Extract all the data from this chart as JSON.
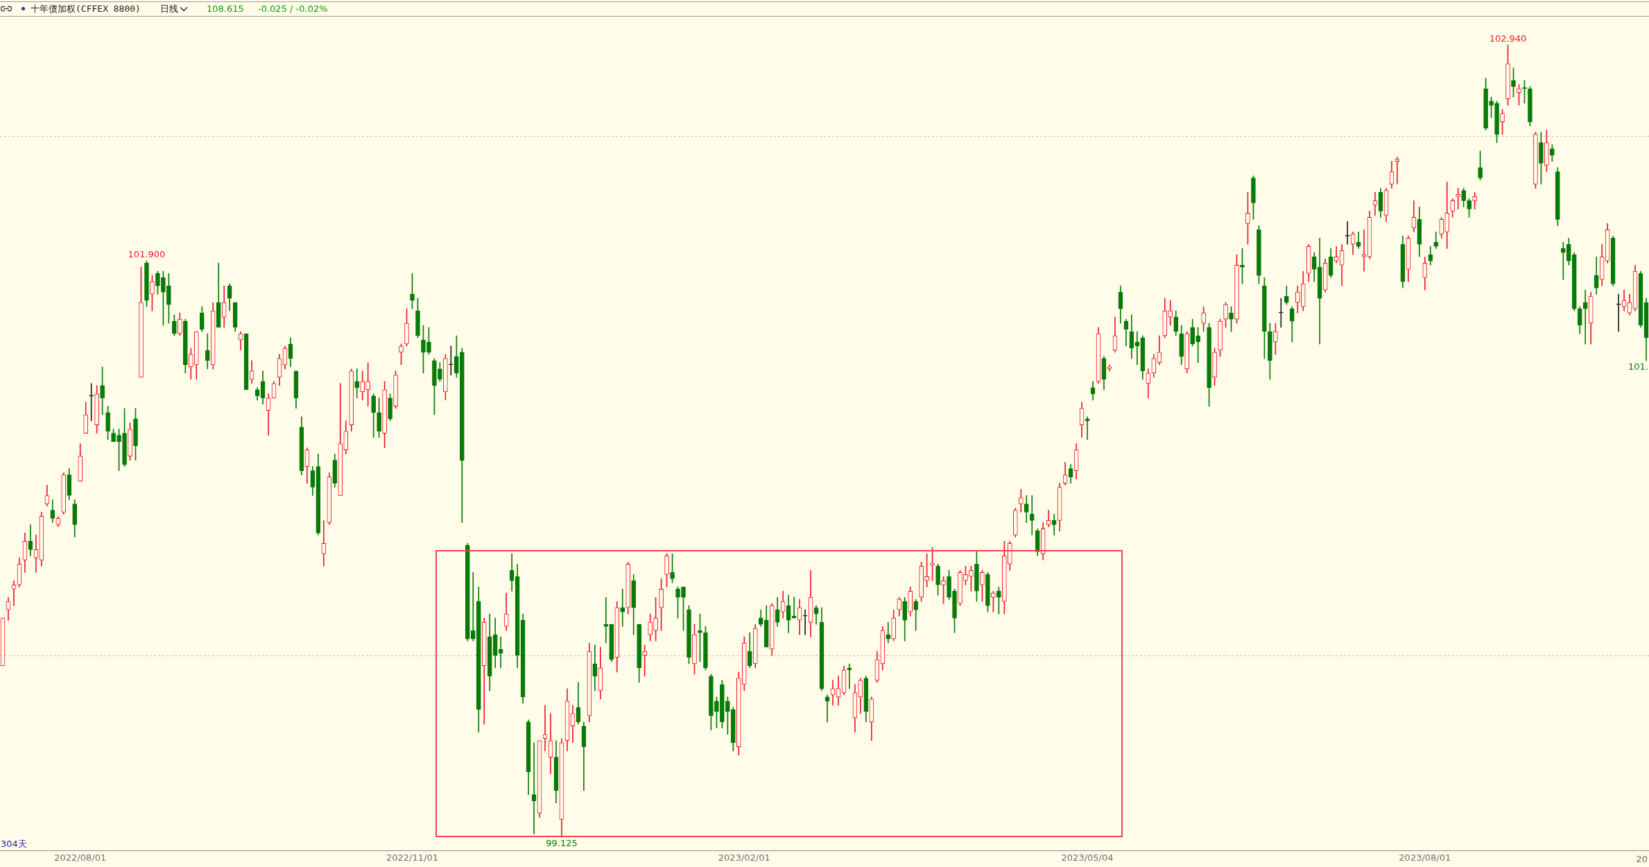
{
  "chart_data": {
    "type": "candlestick",
    "title": "十年债加权(CFFEX 8800)",
    "categories": [
      null,
      null,
      null,
      null,
      null,
      null,
      null,
      null,
      null,
      null,
      null,
      null,
      null,
      null,
      "2022/08/01",
      null,
      null,
      null,
      null,
      null,
      null,
      null,
      null,
      null,
      null,
      null,
      null,
      null,
      null,
      null,
      null,
      null,
      null,
      null,
      null,
      null,
      null,
      null,
      null,
      null,
      null,
      null,
      null,
      null,
      null,
      null,
      null,
      null,
      null,
      null,
      null,
      null,
      null,
      null,
      null,
      null,
      null,
      null,
      null,
      null,
      null,
      null,
      null,
      null,
      null,
      null,
      null,
      null,
      null,
      null,
      null,
      null,
      null,
      null,
      "2022/11/01",
      null,
      null,
      null,
      null,
      null,
      null,
      null,
      null,
      null,
      null,
      null,
      null,
      null,
      null,
      null,
      null,
      null,
      null,
      null,
      null,
      null,
      null,
      null,
      null,
      null,
      null,
      null,
      null,
      null,
      null,
      null,
      null,
      null,
      null,
      null,
      null,
      null,
      null,
      null,
      null,
      null,
      null,
      null,
      null,
      null,
      null,
      null,
      null,
      null,
      null,
      null,
      null,
      null,
      null,
      null,
      null,
      null,
      null,
      null,
      "2023/02/01",
      null,
      null,
      null,
      null,
      null,
      null,
      null,
      null,
      null,
      null,
      null,
      null,
      null,
      null,
      null,
      null,
      null,
      null,
      null,
      null,
      null,
      null,
      null,
      null,
      null,
      null,
      null,
      null,
      null,
      null,
      null,
      null,
      null,
      null,
      null,
      null,
      null,
      null,
      null,
      null,
      null,
      null,
      null,
      null,
      null,
      null,
      null,
      null,
      null,
      null,
      null,
      null,
      null,
      null,
      null,
      null,
      null,
      null,
      null,
      null,
      null,
      "2023/05/04",
      null,
      null,
      null,
      null,
      null,
      null,
      null,
      null,
      null,
      null,
      null,
      null,
      null,
      null,
      null,
      null,
      null,
      null,
      null,
      null,
      null,
      null,
      null,
      null,
      null,
      null,
      null,
      null,
      null,
      null,
      null,
      null,
      null,
      null,
      null,
      null,
      null,
      null,
      null,
      null,
      null,
      null,
      null,
      null,
      null,
      null,
      null,
      null,
      null,
      null,
      null,
      null,
      null,
      null,
      null,
      null,
      null,
      null,
      null,
      null,
      "2023/08/01",
      null,
      null,
      null,
      null,
      null,
      null,
      null,
      null,
      null,
      null,
      null,
      null,
      null,
      null,
      null,
      null,
      null,
      null,
      null,
      null,
      null,
      null,
      null,
      null,
      null,
      null,
      null,
      null,
      null,
      null,
      null,
      null,
      null,
      null,
      null,
      null,
      null,
      null,
      null,
      null
    ],
    "ohlc": [
      [
        99.95,
        100.18,
        99.95,
        100.18
      ],
      [
        100.22,
        100.28,
        100.17,
        100.26
      ],
      [
        100.32,
        100.36,
        100.24,
        100.34
      ],
      [
        100.34,
        100.47,
        100.33,
        100.44
      ],
      [
        100.46,
        100.59,
        100.4,
        100.55
      ],
      [
        100.55,
        100.63,
        100.48,
        100.51
      ],
      [
        100.47,
        100.58,
        100.4,
        100.51
      ],
      [
        100.46,
        100.69,
        100.43,
        100.67
      ],
      [
        100.73,
        100.82,
        100.72,
        100.77
      ],
      [
        100.7,
        100.75,
        100.64,
        100.66
      ],
      [
        100.63,
        100.67,
        100.62,
        100.66
      ],
      [
        100.69,
        100.88,
        100.68,
        100.87
      ],
      [
        100.87,
        100.9,
        100.75,
        100.77
      ],
      [
        100.73,
        100.75,
        100.57,
        100.63
      ],
      [
        100.84,
        101.02,
        100.84,
        100.96
      ],
      [
        101.07,
        101.22,
        101.07,
        101.16
      ],
      [
        101.25,
        101.31,
        101.13,
        101.25
      ],
      [
        101.11,
        101.3,
        101.07,
        101.26
      ],
      [
        101.3,
        101.39,
        101.16,
        101.24
      ],
      [
        101.17,
        101.2,
        101.04,
        101.08
      ],
      [
        101.07,
        101.09,
        101.03,
        101.03
      ],
      [
        101.06,
        101.09,
        100.89,
        101.03
      ],
      [
        101.07,
        101.19,
        100.91,
        100.92
      ],
      [
        100.96,
        101.12,
        100.94,
        101.09
      ],
      [
        101.14,
        101.19,
        100.94,
        101.01
      ],
      [
        101.34,
        101.87,
        101.34,
        101.7
      ],
      [
        101.89,
        101.9,
        101.68,
        101.71
      ],
      [
        101.74,
        101.83,
        101.66,
        101.8
      ],
      [
        101.84,
        101.85,
        101.74,
        101.78
      ],
      [
        101.82,
        101.85,
        101.59,
        101.75
      ],
      [
        101.78,
        101.84,
        101.6,
        101.69
      ],
      [
        101.61,
        101.64,
        101.54,
        101.55
      ],
      [
        101.55,
        101.65,
        101.54,
        101.62
      ],
      [
        101.61,
        101.62,
        101.36,
        101.4
      ],
      [
        101.39,
        101.48,
        101.33,
        101.45
      ],
      [
        101.4,
        101.56,
        101.33,
        101.56
      ],
      [
        101.65,
        101.68,
        101.56,
        101.57
      ],
      [
        101.47,
        101.55,
        101.38,
        101.42
      ],
      [
        101.4,
        101.7,
        101.38,
        101.66
      ],
      [
        101.7,
        101.89,
        101.58,
        101.58
      ],
      [
        101.63,
        101.78,
        101.58,
        101.7
      ],
      [
        101.78,
        101.79,
        101.66,
        101.72
      ],
      [
        101.7,
        101.7,
        101.56,
        101.58
      ],
      [
        101.52,
        101.56,
        101.47,
        101.55
      ],
      [
        101.55,
        101.55,
        101.28,
        101.28
      ],
      [
        101.33,
        101.42,
        101.31,
        101.37
      ],
      [
        101.28,
        101.29,
        101.23,
        101.25
      ],
      [
        101.32,
        101.37,
        101.21,
        101.24
      ],
      [
        101.18,
        101.26,
        101.06,
        101.24
      ],
      [
        101.24,
        101.32,
        101.24,
        101.31
      ],
      [
        101.34,
        101.45,
        101.3,
        101.43
      ],
      [
        101.4,
        101.49,
        101.38,
        101.48
      ],
      [
        101.5,
        101.53,
        101.39,
        101.43
      ],
      [
        101.37,
        101.37,
        101.19,
        101.24
      ],
      [
        101.1,
        101.15,
        100.87,
        100.89
      ],
      [
        100.91,
        101.0,
        100.83,
        100.99
      ],
      [
        100.89,
        100.91,
        100.77,
        100.81
      ],
      [
        100.91,
        100.97,
        100.58,
        100.59
      ],
      [
        100.49,
        100.65,
        100.43,
        100.54
      ],
      [
        100.64,
        100.88,
        100.63,
        100.86
      ],
      [
        100.94,
        100.97,
        100.81,
        100.83
      ],
      [
        100.77,
        101.31,
        100.77,
        101.02
      ],
      [
        100.99,
        101.13,
        100.97,
        101.08
      ],
      [
        101.11,
        101.38,
        101.08,
        101.37
      ],
      [
        101.32,
        101.38,
        101.24,
        101.29
      ],
      [
        101.27,
        101.37,
        101.23,
        101.32
      ],
      [
        101.28,
        101.41,
        101.2,
        101.32
      ],
      [
        101.25,
        101.26,
        101.05,
        101.17
      ],
      [
        101.17,
        101.24,
        101.05,
        101.08
      ],
      [
        101.07,
        101.32,
        101.0,
        101.28
      ],
      [
        101.24,
        101.26,
        101.13,
        101.14
      ],
      [
        101.2,
        101.37,
        101.19,
        101.35
      ],
      [
        101.46,
        101.5,
        101.4,
        101.49
      ],
      [
        101.5,
        101.67,
        101.49,
        101.6
      ],
      [
        101.74,
        101.84,
        101.67,
        101.71
      ],
      [
        101.66,
        101.72,
        101.53,
        101.54
      ],
      [
        101.52,
        101.59,
        101.36,
        101.46
      ],
      [
        101.51,
        101.58,
        101.45,
        101.46
      ],
      [
        101.42,
        101.43,
        101.16,
        101.3
      ],
      [
        101.38,
        101.41,
        101.32,
        101.33
      ],
      [
        101.27,
        101.45,
        101.23,
        101.43
      ],
      [
        101.4,
        101.49,
        101.35,
        101.4
      ],
      [
        101.44,
        101.54,
        101.34,
        101.36
      ],
      [
        101.46,
        101.48,
        100.64,
        100.94
      ],
      [
        100.53,
        100.54,
        100.07,
        100.08
      ],
      [
        100.12,
        100.4,
        100.07,
        100.08
      ],
      [
        100.26,
        100.33,
        99.63,
        99.74
      ],
      [
        99.95,
        100.18,
        99.67,
        100.16
      ],
      [
        100.09,
        100.2,
        99.83,
        99.9
      ],
      [
        100.1,
        100.18,
        99.94,
        100.0
      ],
      [
        100.03,
        100.09,
        99.94,
        100.01
      ],
      [
        100.14,
        100.3,
        100.12,
        100.2
      ],
      [
        100.41,
        100.49,
        100.31,
        100.36
      ],
      [
        100.38,
        100.44,
        99.94,
        100.0
      ],
      [
        100.17,
        100.2,
        99.77,
        99.8
      ],
      [
        99.68,
        99.69,
        99.33,
        99.44
      ],
      [
        99.33,
        99.58,
        99.14,
        99.3
      ],
      [
        99.24,
        99.59,
        99.22,
        99.59
      ],
      [
        99.6,
        99.76,
        99.54,
        99.62
      ],
      [
        99.51,
        99.72,
        99.43,
        99.59
      ],
      [
        99.51,
        99.59,
        99.29,
        99.35
      ],
      [
        99.21,
        99.6,
        99.125,
        99.58
      ],
      [
        99.59,
        99.84,
        99.54,
        99.78
      ],
      [
        99.66,
        99.76,
        99.58,
        99.72
      ],
      [
        99.75,
        99.87,
        99.67,
        99.68
      ],
      [
        99.66,
        99.68,
        99.35,
        99.56
      ],
      [
        99.71,
        100.06,
        99.68,
        100.02
      ],
      [
        99.96,
        100.05,
        99.83,
        99.9
      ],
      [
        99.83,
        100.04,
        99.79,
        99.94
      ],
      [
        100.15,
        100.28,
        100.06,
        100.14
      ],
      [
        100.15,
        100.15,
        99.97,
        99.98
      ],
      [
        99.99,
        100.26,
        99.92,
        100.23
      ],
      [
        100.23,
        100.32,
        100.14,
        100.21
      ],
      [
        100.23,
        100.45,
        100.2,
        100.44
      ],
      [
        100.36,
        100.39,
        100.1,
        100.23
      ],
      [
        100.15,
        100.15,
        99.87,
        99.94
      ],
      [
        100.0,
        100.05,
        99.9,
        100.02
      ],
      [
        100.1,
        100.2,
        100.07,
        100.16
      ],
      [
        100.12,
        100.28,
        100.07,
        100.18
      ],
      [
        100.23,
        100.37,
        100.12,
        100.32
      ],
      [
        100.39,
        100.49,
        100.33,
        100.48
      ],
      [
        100.4,
        100.49,
        100.35,
        100.37
      ],
      [
        100.32,
        100.33,
        100.18,
        100.28
      ],
      [
        100.33,
        100.33,
        100.12,
        100.28
      ],
      [
        100.22,
        100.24,
        99.96,
        99.99
      ],
      [
        99.96,
        100.15,
        99.91,
        100.1
      ],
      [
        100.12,
        100.2,
        99.97,
        100.11
      ],
      [
        100.11,
        100.14,
        99.93,
        99.94
      ],
      [
        99.9,
        99.91,
        99.64,
        99.71
      ],
      [
        99.78,
        99.8,
        99.65,
        99.73
      ],
      [
        99.86,
        99.88,
        99.65,
        99.68
      ],
      [
        99.78,
        99.8,
        99.62,
        99.73
      ],
      [
        99.74,
        99.75,
        99.54,
        99.58
      ],
      [
        99.56,
        99.92,
        99.52,
        99.89
      ],
      [
        99.86,
        100.09,
        99.83,
        100.06
      ],
      [
        100.02,
        100.11,
        99.94,
        99.95
      ],
      [
        99.96,
        100.15,
        99.94,
        100.13
      ],
      [
        100.18,
        100.22,
        100.14,
        100.15
      ],
      [
        100.17,
        100.24,
        100.04,
        100.04
      ],
      [
        100.03,
        100.25,
        100.0,
        100.24
      ],
      [
        100.22,
        100.28,
        100.14,
        100.16
      ],
      [
        100.21,
        100.31,
        100.18,
        100.26
      ],
      [
        100.24,
        100.29,
        100.11,
        100.17
      ],
      [
        100.19,
        100.28,
        100.18,
        100.18
      ],
      [
        100.17,
        100.27,
        100.1,
        100.23
      ],
      [
        100.19,
        100.22,
        100.1,
        100.19
      ],
      [
        100.16,
        100.41,
        100.09,
        100.28
      ],
      [
        100.23,
        100.24,
        100.15,
        100.2
      ],
      [
        100.16,
        100.23,
        99.83,
        99.84
      ],
      [
        99.8,
        99.81,
        99.68,
        99.78
      ],
      [
        99.81,
        99.88,
        99.76,
        99.84
      ],
      [
        99.8,
        99.9,
        99.76,
        99.84
      ],
      [
        99.82,
        99.95,
        99.81,
        99.93
      ],
      [
        99.94,
        99.96,
        99.84,
        99.93
      ],
      [
        99.7,
        99.86,
        99.63,
        99.82
      ],
      [
        99.8,
        99.89,
        99.72,
        99.88
      ],
      [
        99.89,
        99.9,
        99.68,
        99.73
      ],
      [
        99.68,
        99.8,
        99.59,
        99.79
      ],
      [
        99.88,
        100.02,
        99.87,
        99.98
      ],
      [
        99.96,
        100.14,
        99.93,
        100.12
      ],
      [
        100.1,
        100.16,
        100.06,
        100.08
      ],
      [
        100.08,
        100.22,
        100.07,
        100.18
      ],
      [
        100.22,
        100.28,
        100.19,
        100.27
      ],
      [
        100.26,
        100.28,
        100.07,
        100.17
      ],
      [
        100.21,
        100.33,
        100.19,
        100.31
      ],
      [
        100.26,
        100.27,
        100.12,
        100.22
      ],
      [
        100.28,
        100.45,
        100.26,
        100.43
      ],
      [
        100.36,
        100.49,
        100.33,
        100.38
      ],
      [
        100.435,
        100.52,
        100.36,
        100.445
      ],
      [
        100.43,
        100.44,
        100.29,
        100.34
      ],
      [
        100.34,
        100.38,
        100.25,
        100.36
      ],
      [
        100.38,
        100.41,
        100.27,
        100.28
      ],
      [
        100.31,
        100.32,
        100.11,
        100.18
      ],
      [
        100.25,
        100.41,
        100.24,
        100.4
      ],
      [
        100.36,
        100.43,
        100.34,
        100.39
      ],
      [
        100.38,
        100.43,
        100.31,
        100.41
      ],
      [
        100.44,
        100.5,
        100.26,
        100.31
      ],
      [
        100.34,
        100.41,
        100.26,
        100.4
      ],
      [
        100.39,
        100.4,
        100.21,
        100.24
      ],
      [
        100.28,
        100.31,
        100.21,
        100.3
      ],
      [
        100.31,
        100.33,
        100.2,
        100.28
      ],
      [
        100.26,
        100.55,
        100.2,
        100.48
      ],
      [
        100.44,
        100.55,
        100.41,
        100.54
      ],
      [
        100.58,
        100.71,
        100.57,
        100.7
      ],
      [
        100.73,
        100.8,
        100.69,
        100.76
      ],
      [
        100.73,
        100.77,
        100.64,
        100.69
      ],
      [
        100.68,
        100.77,
        100.58,
        100.65
      ],
      [
        100.6,
        100.61,
        100.48,
        100.5
      ],
      [
        100.49,
        100.64,
        100.46,
        100.61
      ],
      [
        100.63,
        100.7,
        100.62,
        100.65
      ],
      [
        100.65,
        100.68,
        100.58,
        100.63
      ],
      [
        100.65,
        100.83,
        100.6,
        100.81
      ],
      [
        100.83,
        100.93,
        100.82,
        100.87
      ],
      [
        100.9,
        100.92,
        100.83,
        100.86
      ],
      [
        100.89,
        101.02,
        100.85,
        100.99
      ],
      [
        101.11,
        101.22,
        101.05,
        101.19
      ],
      [
        101.14,
        101.15,
        101.04,
        101.13
      ],
      [
        101.29,
        101.32,
        101.23,
        101.26
      ],
      [
        101.32,
        101.58,
        101.31,
        101.55
      ],
      [
        101.43,
        101.44,
        101.28,
        101.33
      ],
      [
        101.38,
        101.4,
        101.37,
        101.39
      ],
      [
        101.47,
        101.63,
        101.46,
        101.54
      ],
      [
        101.75,
        101.78,
        101.6,
        101.67
      ],
      [
        101.61,
        101.62,
        101.49,
        101.57
      ],
      [
        101.56,
        101.64,
        101.43,
        101.48
      ],
      [
        101.51,
        101.56,
        101.4,
        101.49
      ],
      [
        101.53,
        101.54,
        101.33,
        101.37
      ],
      [
        101.31,
        101.38,
        101.24,
        101.36
      ],
      [
        101.36,
        101.45,
        101.34,
        101.43
      ],
      [
        101.41,
        101.54,
        101.4,
        101.46
      ],
      [
        101.54,
        101.72,
        101.53,
        101.66
      ],
      [
        101.63,
        101.71,
        101.59,
        101.66
      ],
      [
        101.63,
        101.66,
        101.54,
        101.56
      ],
      [
        101.55,
        101.59,
        101.4,
        101.44
      ],
      [
        101.38,
        101.56,
        101.36,
        101.55
      ],
      [
        101.58,
        101.62,
        101.49,
        101.5
      ],
      [
        101.54,
        101.58,
        101.41,
        101.51
      ],
      [
        101.6,
        101.68,
        101.56,
        101.65
      ],
      [
        101.58,
        101.6,
        101.2,
        101.29
      ],
      [
        101.34,
        101.48,
        101.3,
        101.46
      ],
      [
        101.47,
        101.62,
        101.44,
        101.61
      ],
      [
        101.62,
        101.7,
        101.58,
        101.69
      ],
      [
        101.65,
        101.68,
        101.56,
        101.62
      ],
      [
        101.62,
        101.93,
        101.6,
        101.88
      ],
      [
        101.88,
        101.96,
        101.79,
        101.87
      ],
      [
        102.08,
        102.23,
        101.98,
        102.13
      ],
      [
        102.3,
        102.31,
        102.1,
        102.18
      ],
      [
        102.05,
        102.07,
        101.79,
        101.83
      ],
      [
        101.78,
        101.82,
        101.43,
        101.56
      ],
      [
        101.56,
        101.6,
        101.33,
        101.42
      ],
      [
        101.51,
        101.6,
        101.45,
        101.56
      ],
      [
        101.65,
        101.72,
        101.58,
        101.65
      ],
      [
        101.73,
        101.78,
        101.69,
        101.7
      ],
      [
        101.67,
        101.68,
        101.51,
        101.61
      ],
      [
        101.7,
        101.78,
        101.65,
        101.75
      ],
      [
        101.68,
        101.85,
        101.66,
        101.79
      ],
      [
        101.84,
        101.98,
        101.8,
        101.97
      ],
      [
        101.92,
        101.94,
        101.8,
        101.86
      ],
      [
        101.87,
        102.01,
        101.5,
        101.72
      ],
      [
        101.76,
        101.91,
        101.75,
        101.89
      ],
      [
        101.92,
        101.96,
        101.82,
        101.83
      ],
      [
        101.9,
        101.97,
        101.89,
        101.92
      ],
      [
        101.88,
        101.98,
        101.78,
        101.95
      ],
      [
        102.02,
        102.09,
        101.98,
        102.02
      ],
      [
        101.98,
        102.04,
        101.93,
        102.03
      ],
      [
        101.99,
        102.04,
        101.96,
        101.97
      ],
      [
        101.92,
        102.05,
        101.85,
        101.93
      ],
      [
        101.92,
        102.14,
        101.91,
        102.11
      ],
      [
        102.17,
        102.23,
        102.12,
        102.19
      ],
      [
        102.23,
        102.25,
        102.11,
        102.14
      ],
      [
        102.12,
        102.25,
        102.09,
        102.24
      ],
      [
        102.27,
        102.38,
        102.25,
        102.33
      ],
      [
        102.38,
        102.4,
        102.27,
        102.39
      ],
      [
        101.98,
        102.02,
        101.77,
        101.8
      ],
      [
        101.86,
        102.02,
        101.8,
        102.01
      ],
      [
        102.06,
        102.19,
        102.04,
        102.11
      ],
      [
        102.1,
        102.16,
        101.92,
        101.98
      ],
      [
        101.82,
        101.92,
        101.76,
        101.89
      ],
      [
        101.93,
        101.97,
        101.88,
        101.9
      ],
      [
        101.99,
        102.04,
        101.96,
        101.97
      ],
      [
        102.03,
        102.11,
        102.01,
        102.1
      ],
      [
        102.04,
        102.28,
        101.96,
        102.13
      ],
      [
        102.14,
        102.2,
        102.11,
        102.19
      ],
      [
        102.21,
        102.25,
        102.15,
        102.22
      ],
      [
        102.24,
        102.25,
        102.16,
        102.19
      ],
      [
        102.19,
        102.2,
        102.11,
        102.15
      ],
      [
        102.19,
        102.23,
        102.15,
        102.21
      ],
      [
        102.35,
        102.43,
        102.29,
        102.3
      ],
      [
        102.73,
        102.78,
        102.53,
        102.54
      ],
      [
        102.67,
        102.69,
        102.59,
        102.65
      ],
      [
        102.66,
        102.67,
        102.47,
        102.51
      ],
      [
        102.57,
        102.63,
        102.51,
        102.61
      ],
      [
        102.68,
        102.94,
        102.65,
        102.85
      ],
      [
        102.77,
        102.83,
        102.69,
        102.74
      ],
      [
        102.71,
        102.75,
        102.65,
        102.73
      ],
      [
        102.735,
        102.77,
        102.66,
        102.73
      ],
      [
        102.73,
        102.74,
        102.55,
        102.57
      ],
      [
        102.27,
        102.52,
        102.25,
        102.51
      ],
      [
        102.47,
        102.52,
        102.27,
        102.37
      ],
      [
        102.36,
        102.53,
        102.33,
        102.47
      ],
      [
        102.44,
        102.46,
        102.38,
        102.41
      ],
      [
        102.33,
        102.35,
        102.07,
        102.1
      ],
      [
        101.96,
        101.99,
        101.81,
        101.94
      ],
      [
        101.98,
        102.01,
        101.88,
        101.9
      ],
      [
        101.93,
        101.94,
        101.66,
        101.67
      ],
      [
        101.67,
        101.68,
        101.55,
        101.59
      ],
      [
        101.7,
        101.76,
        101.5,
        101.67
      ],
      [
        101.6,
        101.75,
        101.5,
        101.73
      ],
      [
        101.83,
        101.92,
        101.74,
        101.77
      ],
      [
        101.81,
        101.98,
        101.78,
        101.92
      ],
      [
        101.9,
        102.08,
        101.89,
        102.05
      ],
      [
        102.01,
        102.02,
        101.78,
        101.79
      ],
      [
        101.69,
        101.74,
        101.56,
        101.69
      ],
      [
        101.68,
        101.76,
        101.66,
        101.71
      ],
      [
        101.65,
        101.74,
        101.64,
        101.7
      ],
      [
        101.67,
        101.88,
        101.66,
        101.85
      ],
      [
        101.84,
        101.85,
        101.58,
        101.59
      ],
      [
        101.7,
        101.72,
        101.42,
        101.53
      ]
    ],
    "ylim": [
      99.06,
      103.08
    ],
    "yticks": [
      {
        "value": 100,
        "label": null
      },
      {
        "value": 102.5,
        "label": null
      }
    ],
    "grid": "y",
    "tick_labels": "x",
    "annotations": [
      "日线",
      "108.615",
      "-0.025 / -0.02%",
      "304天",
      "20",
      "101.",
      {
        "text": "101.900",
        "y": 101.9
      },
      {
        "text": "102.940",
        "y": 102.94
      },
      {
        "text": "99.125",
        "y": 99.125
      }
    ]
  }
}
